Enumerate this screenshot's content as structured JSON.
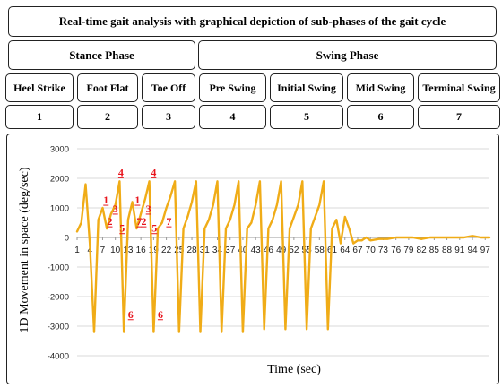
{
  "header": {
    "title": "Real-time gait analysis with graphical depiction of sub-phases of the gait cycle"
  },
  "phases": [
    {
      "label": "Stance Phase"
    },
    {
      "label": "Swing Phase"
    }
  ],
  "subphases": [
    {
      "label": "Heel Strike",
      "number": "1"
    },
    {
      "label": "Foot Flat",
      "number": "2"
    },
    {
      "label": "Toe Off",
      "number": "3"
    },
    {
      "label": "Pre Swing",
      "number": "4"
    },
    {
      "label": "Initial Swing",
      "number": "5"
    },
    {
      "label": "Mid Swing",
      "number": "6"
    },
    {
      "label": "Terminal Swing",
      "number": "7"
    }
  ],
  "chart_data": {
    "type": "line",
    "xlabel": "Time (sec)",
    "ylabel": "1D Movement in space (deg/sec)",
    "ylim": [
      -4000,
      3000
    ],
    "yticks": [
      3000,
      2000,
      1000,
      0,
      -1000,
      -2000,
      -3000,
      -4000
    ],
    "xticks": [
      1,
      4,
      7,
      10,
      13,
      16,
      19,
      22,
      25,
      28,
      31,
      34,
      37,
      40,
      43,
      46,
      49,
      52,
      55,
      58,
      61,
      64,
      67,
      70,
      73,
      76,
      79,
      82,
      85,
      88,
      91,
      94,
      97
    ],
    "xlim": [
      1,
      98
    ],
    "grid": true,
    "line_color": "#f0ac17",
    "annotation_color": "#e8141c",
    "series": [
      {
        "x": [
          1,
          2,
          3,
          4,
          5,
          6,
          7,
          8,
          9,
          10,
          11,
          12,
          13,
          14,
          15,
          16,
          17,
          18,
          19,
          20,
          21,
          22,
          23,
          24,
          25,
          26,
          27,
          28,
          29,
          30,
          31,
          32,
          33,
          34,
          35,
          36,
          37,
          38,
          39,
          40,
          41,
          42,
          43,
          44,
          45,
          46,
          47,
          48,
          49,
          50,
          51,
          52,
          53,
          54,
          55,
          56,
          57,
          58,
          59,
          60,
          61,
          62,
          63,
          64,
          65,
          66,
          67,
          68,
          69,
          70,
          72,
          74,
          76,
          78,
          80,
          82,
          84,
          86,
          88,
          90,
          92,
          94,
          96,
          98
        ],
        "y": [
          200,
          500,
          1800,
          -200,
          -3200,
          600,
          1000,
          300,
          800,
          1100,
          1900,
          -3200,
          600,
          1200,
          300,
          800,
          1300,
          1900,
          -3200,
          300,
          500,
          1000,
          1400,
          1900,
          -3200,
          300,
          700,
          1200,
          1900,
          -3200,
          300,
          600,
          1100,
          1900,
          -3200,
          300,
          600,
          1100,
          1900,
          -3200,
          300,
          500,
          1100,
          1900,
          -3100,
          300,
          600,
          1100,
          1900,
          -3100,
          300,
          700,
          1100,
          1900,
          -3100,
          300,
          700,
          1100,
          1900,
          -3100,
          300,
          600,
          -200,
          700,
          300,
          -200,
          -100,
          -100,
          0,
          -100,
          -50,
          -50,
          0,
          0,
          0,
          -50,
          0,
          0,
          0,
          0,
          0,
          50,
          0,
          0
        ]
      }
    ],
    "annotations": [
      {
        "text": "1",
        "x": 7.8,
        "y": 1150
      },
      {
        "text": "2",
        "x": 8.7,
        "y": 420
      },
      {
        "text": "3",
        "x": 10.0,
        "y": 850
      },
      {
        "text": "4",
        "x": 11.3,
        "y": 2080
      },
      {
        "text": "5",
        "x": 11.6,
        "y": 190
      },
      {
        "text": "6",
        "x": 13.6,
        "y": -2720
      },
      {
        "text": "1",
        "x": 15.2,
        "y": 1150
      },
      {
        "text": "7",
        "x": 15.6,
        "y": 420
      },
      {
        "text": "2",
        "x": 16.7,
        "y": 420
      },
      {
        "text": "3",
        "x": 17.8,
        "y": 850
      },
      {
        "text": "4",
        "x": 19.0,
        "y": 2080
      },
      {
        "text": "5",
        "x": 19.2,
        "y": 190
      },
      {
        "text": "6",
        "x": 20.6,
        "y": -2720
      },
      {
        "text": "7",
        "x": 22.6,
        "y": 420
      }
    ]
  }
}
